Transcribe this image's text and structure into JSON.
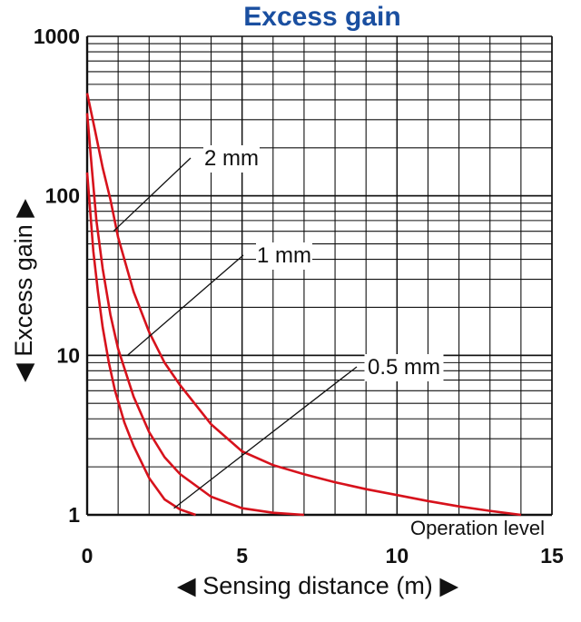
{
  "chart_data": {
    "type": "line",
    "title": "Excess gain",
    "xlabel": "Sensing distance (m)",
    "ylabel": "Excess gain",
    "xlim": [
      0,
      15
    ],
    "ylim": [
      1,
      1000
    ],
    "yscale": "log",
    "x_ticks": [
      "0",
      "5",
      "10",
      "15"
    ],
    "y_ticks": [
      "1",
      "10",
      "100",
      "1000"
    ],
    "grid": true,
    "annotation": "Operation level",
    "series": [
      {
        "name": "0.5 mm",
        "x": [
          0,
          0.1,
          0.2,
          0.35,
          0.5,
          0.7,
          0.9,
          1.2,
          1.5,
          2.0,
          2.5,
          3.0,
          3.5
        ],
        "y": [
          140,
          80,
          45,
          25,
          15,
          9,
          6,
          3.8,
          2.7,
          1.7,
          1.25,
          1.08,
          1
        ]
      },
      {
        "name": "1 mm",
        "x": [
          0,
          0.15,
          0.3,
          0.5,
          0.75,
          1.0,
          1.5,
          2.0,
          2.5,
          3.0,
          4.0,
          5.0,
          6.0,
          7.0
        ],
        "y": [
          330,
          150,
          70,
          35,
          18,
          11,
          5.5,
          3.3,
          2.3,
          1.8,
          1.3,
          1.1,
          1.03,
          1
        ]
      },
      {
        "name": "2 mm",
        "x": [
          0,
          0.25,
          0.5,
          0.75,
          1.0,
          1.5,
          2.0,
          2.5,
          3.0,
          4.0,
          5.0,
          6.0,
          7.0,
          8.0,
          9.0,
          10.0,
          11.0,
          12.0,
          13.0,
          14.0
        ],
        "y": [
          440,
          260,
          150,
          95,
          55,
          25,
          14,
          9,
          6.5,
          3.7,
          2.5,
          2.05,
          1.8,
          1.6,
          1.45,
          1.33,
          1.22,
          1.13,
          1.06,
          1
        ]
      }
    ],
    "colors": {
      "series": "#d7121c",
      "title": "#1a4fa0"
    }
  }
}
